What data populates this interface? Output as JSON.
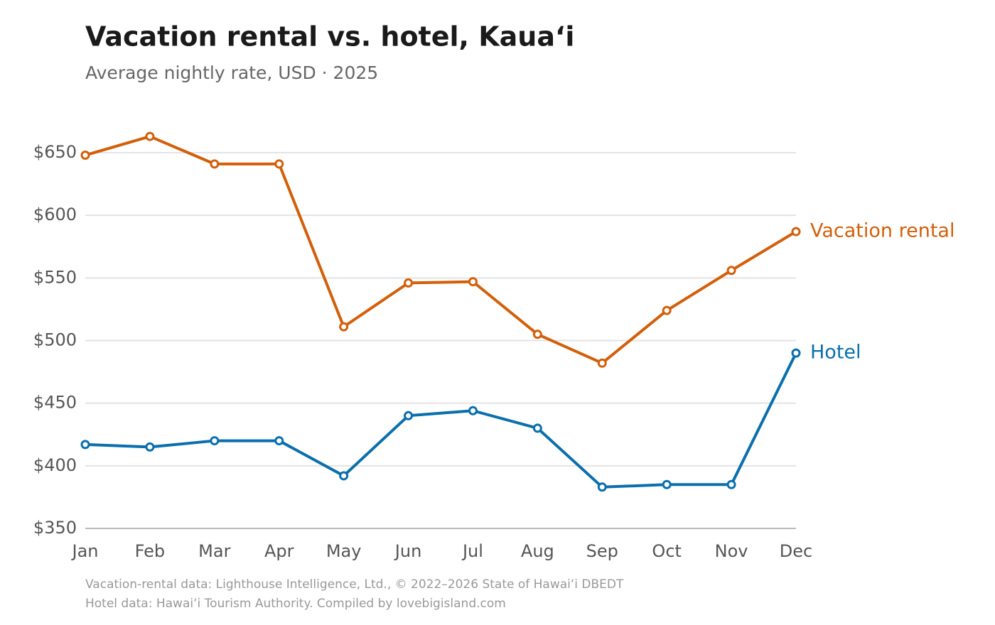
{
  "chart_data": {
    "type": "line",
    "title": "Vacation rental vs. hotel, Kauaʻi",
    "subtitle": "Average nightly rate, USD · 2025",
    "categories": [
      "Jan",
      "Feb",
      "Mar",
      "Apr",
      "May",
      "Jun",
      "Jul",
      "Aug",
      "Sep",
      "Oct",
      "Nov",
      "Dec"
    ],
    "series": [
      {
        "name": "Vacation rental",
        "color": "#d35f0a",
        "values": [
          648,
          663,
          641,
          641,
          511,
          546,
          547,
          505,
          482,
          524,
          556,
          587
        ]
      },
      {
        "name": "Hotel",
        "color": "#0a6fad",
        "values": [
          417,
          415,
          420,
          420,
          392,
          440,
          444,
          430,
          383,
          385,
          385,
          490
        ]
      }
    ],
    "ylim": [
      350,
      670
    ],
    "yticks": [
      {
        "value": 350,
        "label": "$350"
      },
      {
        "value": 400,
        "label": "$400"
      },
      {
        "value": 450,
        "label": "$450"
      },
      {
        "value": 500,
        "label": "$500"
      },
      {
        "value": 550,
        "label": "$550"
      },
      {
        "value": 600,
        "label": "$600"
      },
      {
        "value": 650,
        "label": "$650"
      }
    ],
    "grid": true,
    "notes": [
      "Vacation-rental data: Lighthouse Intelligence, Ltd., © 2022–2026 State of Hawaiʻi DBEDT",
      "Hotel data: Hawaiʻi Tourism Authority. Compiled by lovebigisland.com"
    ]
  }
}
